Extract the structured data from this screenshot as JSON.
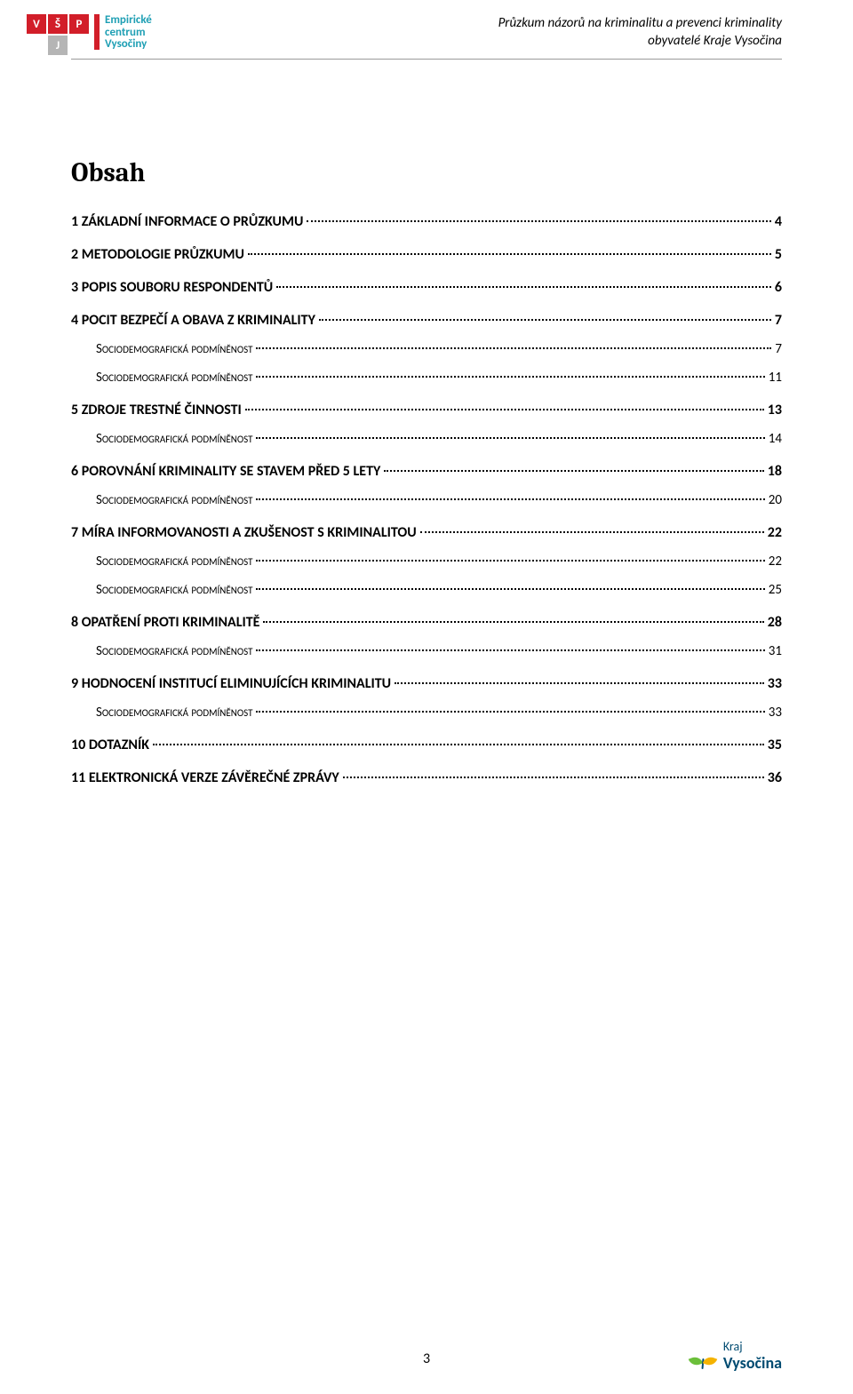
{
  "header": {
    "title_line1": "Průzkum názorů na kriminalitu a prevenci kriminality",
    "title_line2": "obyvatelé Kraje Vysočina",
    "logo_vsp": {
      "letters": [
        "V",
        "Š",
        "P",
        "",
        "J",
        ""
      ]
    },
    "logo_ecv_line1": "Empirické",
    "logo_ecv_line2": "centrum",
    "logo_ecv_line3": "Vysočiny",
    "colors": {
      "red": "#d21e29",
      "grey": "#b5b5b5",
      "teal": "#1e9fb4"
    }
  },
  "title": "Obsah",
  "toc": [
    {
      "level": 1,
      "label": "1 ZÁKLADNÍ INFORMACE O PRŮZKUMU",
      "page": "4"
    },
    {
      "level": 1,
      "label": "2 METODOLOGIE PRŮZKUMU",
      "page": "5"
    },
    {
      "level": 1,
      "label": "3 POPIS SOUBORU RESPONDENTŮ",
      "page": "6"
    },
    {
      "level": 1,
      "label": "4 POCIT BEZPEČÍ A OBAVA Z KRIMINALITY",
      "page": "7"
    },
    {
      "level": 2,
      "label": "Sociodemografická podmíněnost",
      "page": "7"
    },
    {
      "level": 2,
      "label": "Sociodemografická podmíněnost",
      "page": "11"
    },
    {
      "level": 1,
      "label": "5 ZDROJE TRESTNÉ ČINNOSTI",
      "page": "13"
    },
    {
      "level": 2,
      "label": "Sociodemografická podmíněnost",
      "page": "14"
    },
    {
      "level": 1,
      "label": "6 POROVNÁNÍ KRIMINALITY SE STAVEM PŘED 5 LETY",
      "page": "18"
    },
    {
      "level": 2,
      "label": "Sociodemografická podmíněnost",
      "page": "20"
    },
    {
      "level": 1,
      "label": "7 MÍRA INFORMOVANOSTI A ZKUŠENOST S KRIMINALITOU",
      "page": "22"
    },
    {
      "level": 2,
      "label": "Sociodemografická podmíněnost",
      "page": "22"
    },
    {
      "level": 2,
      "label": "Sociodemografická podmíněnost",
      "page": "25"
    },
    {
      "level": 1,
      "label": "8 OPATŘENÍ PROTI KRIMINALITĚ",
      "page": "28"
    },
    {
      "level": 2,
      "label": "Sociodemografická podmíněnost",
      "page": "31"
    },
    {
      "level": 1,
      "label": "9 HODNOCENÍ INSTITUCÍ ELIMINUJÍCÍCH KRIMINALITU",
      "page": "33"
    },
    {
      "level": 2,
      "label": "Sociodemografická podmíněnost",
      "page": "33"
    },
    {
      "level": 1,
      "label": "10 DOTAZNÍK",
      "page": "35"
    },
    {
      "level": 1,
      "label": "11 ELEKTRONICKÁ VERZE ZÁVĚREČNÉ ZPRÁVY",
      "page": "36"
    }
  ],
  "footer": {
    "page_number": "3",
    "logo_text_small": "Kraj",
    "logo_text_main": "Vysočina",
    "colors": {
      "green": "#6bbf3a",
      "yellow": "#f5b300",
      "blue": "#004b71"
    }
  }
}
